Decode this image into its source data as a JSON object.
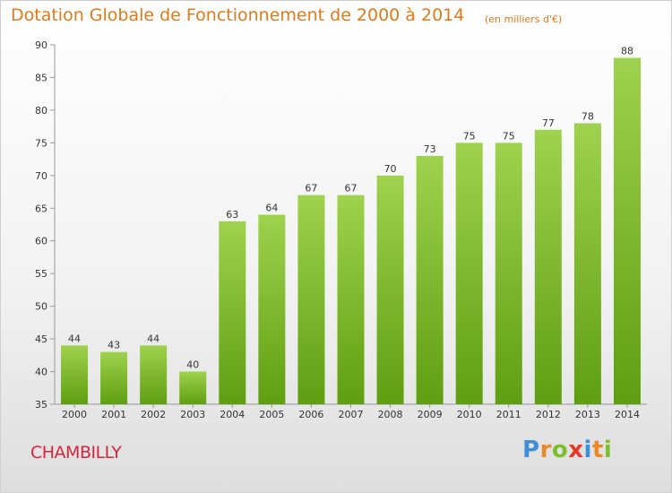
{
  "title": "Dotation Globale de Fonctionnement de 2000 à 2014",
  "subtitle": "(en milliers d'€)",
  "commune": "CHAMBILLY",
  "logo": {
    "text": "Proxiti"
  },
  "colors": {
    "bar_top": "#9fd24e",
    "bar_bottom": "#5f9e12",
    "title": "#e07a18",
    "commune": "#d8253b"
  },
  "chart_data": {
    "type": "bar",
    "title": "Dotation Globale de Fonctionnement de 2000 à 2014",
    "subtitle": "(en milliers d'€)",
    "categories": [
      "2000",
      "2001",
      "2002",
      "2003",
      "2004",
      "2005",
      "2006",
      "2007",
      "2008",
      "2009",
      "2010",
      "2011",
      "2012",
      "2013",
      "2014"
    ],
    "values": [
      44,
      43,
      44,
      40,
      63,
      64,
      67,
      67,
      70,
      73,
      75,
      75,
      77,
      78,
      88
    ],
    "ylim": [
      35,
      90
    ],
    "yticks": [
      35,
      40,
      45,
      50,
      55,
      60,
      65,
      70,
      75,
      80,
      85,
      90
    ],
    "xlabel": "",
    "ylabel": "",
    "grid": false,
    "legend": "none",
    "data_labels": true
  }
}
